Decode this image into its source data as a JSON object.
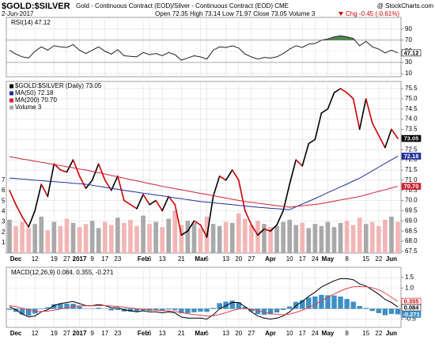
{
  "header": {
    "symbol": "$GOLD:$SILVER",
    "description": "Gold - Continuous Contract (EOD)/Silver - Continuous Contract (EOD) CME",
    "credit": "@ StockCharts.com",
    "date": "2-Jun-2017",
    "ohlc": "Open 72.35 High 73.14 Low 71.97 Close 73.05 Volume 3",
    "change": "Chg -0.45 (-0.61%)"
  },
  "chart_data": [
    {
      "type": "line",
      "title": "RSI(14) 47.12",
      "ylim": [
        4.3,
        111
      ],
      "yticks": [
        90,
        70,
        50,
        30,
        10
      ],
      "grid": true,
      "overbought": 70,
      "overbought_color": "#4f8a4f",
      "series": [
        {
          "color": "#222222",
          "box_fill": "#ffffff",
          "box_text": "#000000",
          "values": [
            52,
            45,
            40,
            38,
            50,
            58,
            52,
            60,
            58,
            57,
            62,
            52,
            46,
            52,
            58,
            50,
            45,
            53,
            42,
            41,
            40,
            48,
            44,
            46,
            42,
            48,
            44,
            34,
            38,
            42,
            40,
            36,
            52,
            58,
            57,
            60,
            56,
            45,
            40,
            36,
            39,
            38,
            40,
            46,
            54,
            60,
            57,
            63,
            64,
            70,
            72,
            76,
            78,
            76,
            73,
            60,
            68,
            58,
            54,
            47,
            52,
            47.12
          ]
        }
      ]
    },
    {
      "type": "line",
      "legend": "upper left",
      "grid": true,
      "categories": [
        null,
        "Dec",
        null,
        null,
        "12",
        null,
        null,
        "19",
        null,
        "27",
        null,
        "2017",
        null,
        "9",
        null,
        "17",
        null,
        "23",
        null,
        null,
        null,
        "Feb",
        "6",
        null,
        "13",
        null,
        null,
        "21",
        null,
        null,
        "Mar",
        "6",
        null,
        null,
        "13",
        null,
        "20",
        null,
        "27",
        null,
        null,
        "Apr",
        null,
        null,
        "10",
        null,
        "17",
        null,
        "24",
        null,
        "May",
        null,
        null,
        "8",
        null,
        null,
        "15",
        null,
        "22",
        null,
        "Jun",
        null
      ],
      "ylim": [
        67.42,
        75.85
      ],
      "yticks": [
        67.5,
        {
          "value": 68,
          "label": "68.0"
        },
        68.5,
        {
          "value": 69,
          "label": "69.0"
        },
        69.5,
        {
          "value": 70,
          "label": "70.0"
        },
        70.5,
        {
          "value": 71,
          "label": "71.0"
        },
        71.5,
        {
          "value": 72,
          "label": "72.0"
        },
        72.5,
        {
          "value": 73,
          "label": "73.0"
        },
        73.5,
        {
          "value": 74,
          "label": "74.0"
        },
        74.5,
        {
          "value": 75,
          "label": "75.0"
        },
        75.5
      ],
      "y2lim": [
        0,
        16.5
      ],
      "y2ticks": [
        1,
        2,
        3,
        4,
        5,
        6,
        7
      ],
      "series": [
        {
          "name": "$GOLD:$SILVER (Daily) 73.05",
          "color": "#000000",
          "down_color": "#cc0000",
          "box_fill": "#000000",
          "box_text": "#ffffff",
          "values": [
            70.5,
            69.8,
            69.2,
            68.7,
            69.5,
            70.8,
            70.2,
            71.8,
            71.5,
            71.4,
            72.0,
            71.2,
            70.6,
            71.0,
            71.8,
            71.0,
            70.5,
            71.2,
            70.0,
            69.8,
            69.6,
            70.3,
            69.8,
            70.0,
            69.5,
            70.2,
            69.8,
            68.3,
            68.5,
            69.0,
            68.8,
            68.2,
            70.2,
            71.2,
            71.0,
            71.5,
            71.0,
            69.5,
            68.8,
            68.3,
            68.6,
            68.5,
            68.8,
            69.5,
            70.8,
            72.0,
            71.7,
            72.8,
            73.0,
            74.3,
            74.5,
            75.3,
            75.5,
            75.3,
            75.0,
            73.5,
            75.0,
            73.8,
            73.2,
            72.6,
            73.5,
            73.05
          ]
        },
        {
          "name": "MA(50) 72.18",
          "color": "#1f2f9a",
          "box_fill": "#1f2f9a",
          "box_text": "#ffffff",
          "values": [
            71.1,
            71.08,
            71.05,
            71.03,
            71.0,
            70.98,
            70.95,
            70.93,
            70.9,
            70.88,
            70.85,
            70.83,
            70.8,
            70.75,
            70.7,
            70.65,
            70.6,
            70.55,
            70.5,
            70.45,
            70.41,
            70.36,
            70.32,
            70.27,
            70.23,
            70.18,
            70.13,
            70.09,
            70.04,
            70.0,
            69.95,
            69.92,
            69.89,
            69.86,
            69.83,
            69.8,
            69.76,
            69.73,
            69.7,
            69.67,
            69.65,
            69.62,
            69.6,
            69.57,
            69.55,
            69.69,
            69.83,
            69.96,
            70.1,
            70.24,
            70.39,
            70.53,
            70.67,
            70.81,
            70.96,
            71.1,
            71.28,
            71.46,
            71.64,
            71.82,
            72.0,
            72.18
          ]
        },
        {
          "name": "MA(200) 70.70",
          "color": "#cc2233",
          "box_fill": "#cc2233",
          "box_text": "#ffffff",
          "values": [
            72.15,
            72.1,
            72.04,
            71.99,
            71.93,
            71.88,
            71.83,
            71.77,
            71.72,
            71.66,
            71.61,
            71.55,
            71.5,
            71.43,
            71.37,
            71.3,
            71.23,
            71.17,
            71.1,
            71.03,
            70.97,
            70.9,
            70.83,
            70.77,
            70.7,
            70.64,
            70.58,
            70.53,
            70.47,
            70.41,
            70.35,
            70.3,
            70.24,
            70.18,
            70.12,
            70.06,
            70.01,
            69.95,
            69.91,
            69.87,
            69.83,
            69.79,
            69.75,
            69.71,
            69.67,
            69.71,
            69.74,
            69.78,
            69.81,
            69.85,
            69.91,
            69.97,
            70.03,
            70.08,
            70.14,
            70.2,
            70.28,
            70.37,
            70.45,
            70.53,
            70.62,
            70.7
          ],
          "value_labels": [
            null,
            null,
            null,
            null,
            null,
            null,
            null,
            null,
            null,
            null,
            null,
            null,
            null,
            null,
            null,
            null,
            null,
            null,
            null,
            null,
            null,
            null,
            null,
            null,
            null,
            null,
            null,
            null,
            null,
            null,
            null,
            null,
            null,
            null,
            null,
            null,
            null,
            null,
            null,
            null,
            null,
            null,
            null,
            null,
            null,
            null,
            null,
            null,
            null,
            null,
            null,
            null,
            null,
            null,
            null,
            null,
            null,
            null,
            null,
            null,
            null,
            "70.70"
          ]
        },
        {
          "name": "Volume 3",
          "type": "bar",
          "axis": "y2",
          "color": "#a9a9a9",
          "down_color": "#f2b5b5",
          "values": [
            3.2,
            2.6,
            3.0,
            2.4,
            2.8,
            3.5,
            2.2,
            3.0,
            2.6,
            3.3,
            2.9,
            2.5,
            2.8,
            3.1,
            2.4,
            3.0,
            2.7,
            3.4,
            2.9,
            3.2,
            2.6,
            3.6,
            2.8,
            3.0,
            2.5,
            3.3,
            4.1,
            2.7,
            3.1,
            2.9,
            2.4,
            3.5,
            2.8,
            2.6,
            3.0,
            2.9,
            3.8,
            3.3,
            2.7,
            3.1,
            2.8,
            2.5,
            2.6,
            3.0,
            3.2,
            2.7,
            2.9,
            2.4,
            2.8,
            2.6,
            3.0,
            2.5,
            2.9,
            3.1,
            2.7,
            3.4,
            2.8,
            3.0,
            2.6,
            3.2,
            3.5,
            3
          ]
        }
      ]
    },
    {
      "type": "line",
      "title": "MACD(12,26,9) 0.084, 0.355, -0.271",
      "grid": true,
      "categories": [
        null,
        "Dec",
        null,
        null,
        "12",
        null,
        null,
        "19",
        null,
        "27",
        null,
        "2017",
        null,
        "9",
        null,
        "17",
        null,
        "23",
        null,
        null,
        null,
        "Feb",
        "6",
        null,
        "13",
        null,
        null,
        "21",
        null,
        null,
        "Mar",
        "6",
        null,
        null,
        "13",
        null,
        "20",
        null,
        "27",
        null,
        null,
        "Apr",
        null,
        null,
        "10",
        null,
        "17",
        null,
        "24",
        null,
        "May",
        null,
        null,
        "8",
        null,
        null,
        "15",
        null,
        "22",
        null,
        "Jun",
        null
      ],
      "ylim": [
        -0.9,
        2.0
      ],
      "yticks": [
        1.5,
        {
          "value": 1,
          "label": "1.0"
        },
        -0.5
      ],
      "series": [
        {
          "type": "bar",
          "color": "#3d8fc4",
          "box_fill": "#3d8fc4",
          "box_text": "#ffffff",
          "values": [
            -0.05,
            -0.15,
            -0.28,
            -0.34,
            -0.23,
            -0.02,
            0.07,
            0.22,
            0.26,
            0.25,
            0.24,
            0.11,
            0.01,
            0.01,
            0.05,
            0.0,
            -0.08,
            -0.06,
            -0.13,
            -0.14,
            -0.15,
            -0.08,
            -0.1,
            -0.08,
            -0.1,
            -0.04,
            -0.07,
            -0.22,
            -0.21,
            -0.17,
            -0.14,
            -0.15,
            0.04,
            0.27,
            0.34,
            0.39,
            0.31,
            0.09,
            -0.13,
            -0.26,
            -0.29,
            -0.27,
            -0.18,
            -0.06,
            0.11,
            0.33,
            0.42,
            0.54,
            0.59,
            0.67,
            0.65,
            0.64,
            0.59,
            0.47,
            0.34,
            0.13,
            0.04,
            -0.11,
            -0.21,
            -0.31,
            -0.25,
            -0.271
          ]
        },
        {
          "color": "#000000",
          "box_fill": "#ffffff",
          "box_text": "#000000",
          "values": [
            0.1,
            -0.05,
            -0.25,
            -0.4,
            -0.35,
            -0.15,
            -0.05,
            0.15,
            0.25,
            0.3,
            0.35,
            0.25,
            0.15,
            0.15,
            0.2,
            0.15,
            0.05,
            0.05,
            -0.05,
            -0.1,
            -0.15,
            -0.1,
            -0.15,
            -0.15,
            -0.2,
            -0.15,
            -0.2,
            -0.4,
            -0.45,
            -0.45,
            -0.45,
            -0.5,
            -0.3,
            0.0,
            0.15,
            0.3,
            0.3,
            0.1,
            -0.15,
            -0.35,
            -0.45,
            -0.5,
            -0.45,
            -0.35,
            -0.15,
            0.15,
            0.35,
            0.6,
            0.8,
            1.05,
            1.2,
            1.35,
            1.45,
            1.45,
            1.4,
            1.2,
            1.1,
            0.9,
            0.7,
            0.45,
            0.3,
            0.084
          ]
        },
        {
          "color": "#e0424a",
          "box_fill": "#ffffff",
          "box_text": "#cc0000",
          "values": [
            0.15,
            0.1,
            0.03,
            -0.06,
            -0.12,
            -0.13,
            -0.12,
            -0.07,
            -0.01,
            0.05,
            0.11,
            0.14,
            0.14,
            0.14,
            0.15,
            0.15,
            0.13,
            0.11,
            0.08,
            0.04,
            0.0,
            -0.02,
            -0.05,
            -0.07,
            -0.1,
            -0.11,
            -0.13,
            -0.18,
            -0.24,
            -0.28,
            -0.31,
            -0.35,
            -0.34,
            -0.27,
            -0.19,
            -0.09,
            -0.01,
            0.01,
            -0.02,
            -0.09,
            -0.16,
            -0.23,
            -0.27,
            -0.29,
            -0.26,
            -0.18,
            -0.07,
            0.06,
            0.21,
            0.38,
            0.55,
            0.71,
            0.86,
            0.98,
            1.06,
            1.07,
            1.06,
            1.01,
            0.91,
            0.76,
            0.55,
            0.355
          ]
        }
      ]
    }
  ]
}
